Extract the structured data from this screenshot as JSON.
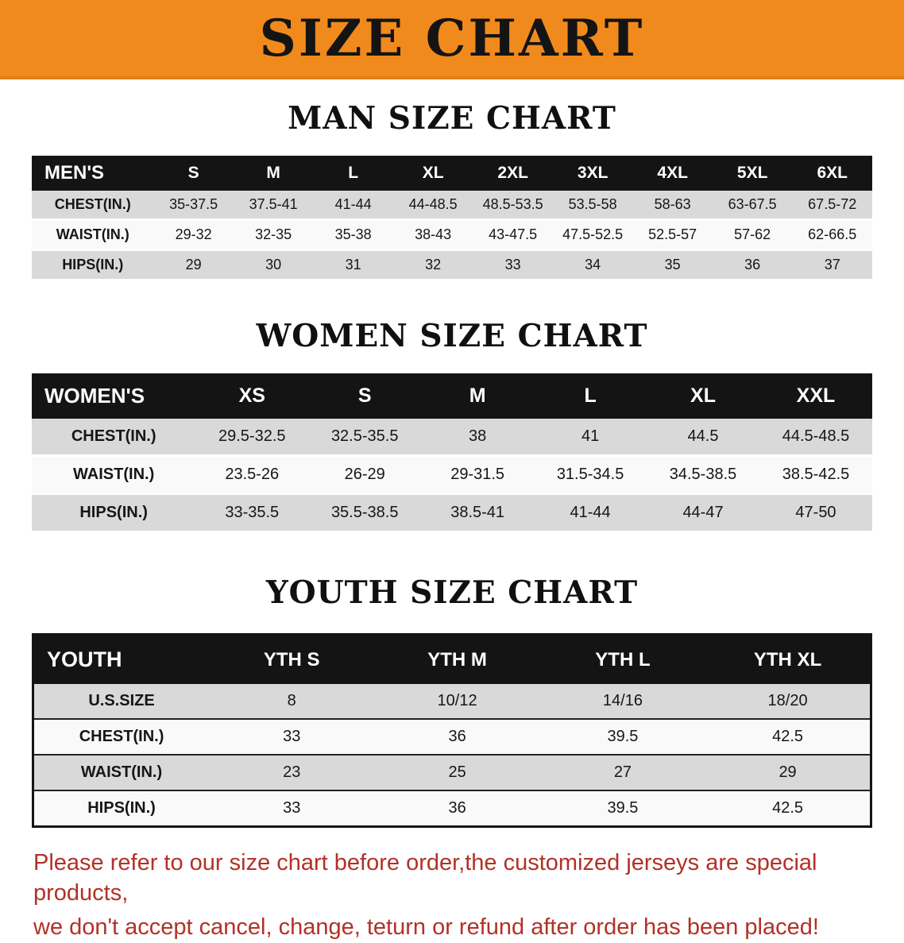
{
  "banner": {
    "title": "SIZE CHART",
    "bg_color": "#F18A1D"
  },
  "men": {
    "heading": "MAN SIZE CHART",
    "header": [
      "MEN'S",
      "S",
      "M",
      "L",
      "XL",
      "2XL",
      "3XL",
      "4XL",
      "5XL",
      "6XL"
    ],
    "rows": [
      [
        "CHEST(IN.)",
        "35-37.5",
        "37.5-41",
        "41-44",
        "44-48.5",
        "48.5-53.5",
        "53.5-58",
        "58-63",
        "63-67.5",
        "67.5-72"
      ],
      [
        "WAIST(IN.)",
        "29-32",
        "32-35",
        "35-38",
        "38-43",
        "43-47.5",
        "47.5-52.5",
        "52.5-57",
        "57-62",
        "62-66.5"
      ],
      [
        "HIPS(IN.)",
        "29",
        "30",
        "31",
        "32",
        "33",
        "34",
        "35",
        "36",
        "37"
      ]
    ]
  },
  "women": {
    "heading": "WOMEN SIZE CHART",
    "header": [
      "WOMEN'S",
      "XS",
      "S",
      "M",
      "L",
      "XL",
      "XXL"
    ],
    "rows": [
      [
        "CHEST(IN.)",
        "29.5-32.5",
        "32.5-35.5",
        "38",
        "41",
        "44.5",
        "44.5-48.5"
      ],
      [
        "WAIST(IN.)",
        "23.5-26",
        "26-29",
        "29-31.5",
        "31.5-34.5",
        "34.5-38.5",
        "38.5-42.5"
      ],
      [
        "HIPS(IN.)",
        "33-35.5",
        "35.5-38.5",
        "38.5-41",
        "41-44",
        "44-47",
        "47-50"
      ]
    ]
  },
  "youth": {
    "heading": "YOUTH SIZE CHART",
    "header": [
      "YOUTH",
      "YTH S",
      "YTH M",
      "YTH L",
      "YTH XL"
    ],
    "rows": [
      [
        "U.S.SIZE",
        "8",
        "10/12",
        "14/16",
        "18/20"
      ],
      [
        "CHEST(IN.)",
        "33",
        "36",
        "39.5",
        "42.5"
      ],
      [
        "WAIST(IN.)",
        "23",
        "25",
        "27",
        "29"
      ],
      [
        "HIPS(IN.)",
        "33",
        "36",
        "39.5",
        "42.5"
      ]
    ]
  },
  "footer": {
    "line1": "Please refer to our size chart before order,the customized jerseys are special products,",
    "line2": "we don't accept cancel, change, teturn or refund after order has been placed!"
  },
  "colors": {
    "banner_orange": "#F18A1D",
    "table_header_black": "#141414",
    "row_gray": "#D9D9D9",
    "note_red": "#B23127"
  }
}
